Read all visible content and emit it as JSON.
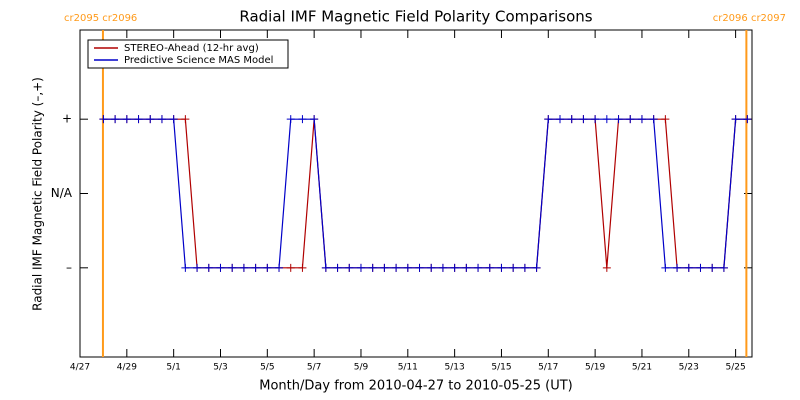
{
  "chart_data": {
    "type": "line",
    "title": "Radial IMF Magnetic Field Polarity Comparisons",
    "x_label": "Month/Day from 2010-04-27 to 2010-05-25 (UT)",
    "y_label": "Radial IMF Magnetic Field Polarity (–,+)",
    "x": [
      1,
      1.5,
      2,
      2.5,
      3,
      3.5,
      4,
      4.5,
      5,
      5.5,
      6,
      6.5,
      7,
      7.5,
      8,
      8.5,
      9,
      9.5,
      10,
      10.5,
      11,
      11.5,
      12,
      12.5,
      13,
      13.5,
      14,
      14.5,
      15,
      15.5,
      16,
      16.5,
      17,
      17.5,
      18,
      18.5,
      19,
      19.5,
      20,
      20.5,
      21,
      21.5,
      22,
      22.5,
      23,
      23.5,
      24,
      24.5,
      25,
      25.5,
      26,
      26.5,
      27,
      27.5,
      28,
      28.5
    ],
    "series": [
      {
        "name": "STEREO-Ahead (12-hr avg)",
        "color": "#b00000",
        "values": [
          1,
          1,
          1,
          1,
          1,
          1,
          1,
          1,
          -1,
          -1,
          -1,
          -1,
          -1,
          -1,
          -1,
          -1,
          -1,
          -1,
          1,
          -1,
          -1,
          -1,
          -1,
          -1,
          -1,
          -1,
          -1,
          -1,
          -1,
          -1,
          -1,
          -1,
          -1,
          -1,
          -1,
          -1,
          -1,
          -1,
          1,
          1,
          1,
          1,
          1,
          -1,
          1,
          1,
          1,
          1,
          1,
          -1,
          -1,
          -1,
          -1,
          -1,
          1,
          1
        ]
      },
      {
        "name": "Predictive Science MAS Model",
        "color": "#0000c8",
        "values": [
          1,
          1,
          1,
          1,
          1,
          1,
          1,
          -1,
          -1,
          -1,
          -1,
          -1,
          -1,
          -1,
          -1,
          -1,
          1,
          1,
          1,
          -1,
          -1,
          -1,
          -1,
          -1,
          -1,
          -1,
          -1,
          -1,
          -1,
          -1,
          -1,
          -1,
          -1,
          -1,
          -1,
          -1,
          -1,
          -1,
          1,
          1,
          1,
          1,
          1,
          1,
          1,
          1,
          1,
          1,
          -1,
          -1,
          -1,
          -1,
          -1,
          -1,
          1,
          1
        ]
      }
    ],
    "xlim": [
      0,
      28.7
    ],
    "xticks": [
      {
        "value": 0,
        "label": "4/27"
      },
      {
        "value": 2,
        "label": "4/29"
      },
      {
        "value": 4,
        "label": "5/1"
      },
      {
        "value": 6,
        "label": "5/3"
      },
      {
        "value": 8,
        "label": "5/5"
      },
      {
        "value": 10,
        "label": "5/7"
      },
      {
        "value": 12,
        "label": "5/9"
      },
      {
        "value": 14,
        "label": "5/11"
      },
      {
        "value": 16,
        "label": "5/13"
      },
      {
        "value": 18,
        "label": "5/15"
      },
      {
        "value": 20,
        "label": "5/17"
      },
      {
        "value": 22,
        "label": "5/19"
      },
      {
        "value": 24,
        "label": "5/21"
      },
      {
        "value": 26,
        "label": "5/23"
      },
      {
        "value": 28,
        "label": "5/25"
      }
    ],
    "ylim": [
      -2.2,
      2.2
    ],
    "yticks": [
      {
        "value": 1,
        "label": "+"
      },
      {
        "value": 0,
        "label": "N/A"
      },
      {
        "value": -1,
        "label": "–"
      }
    ],
    "grid": false,
    "legend": "upper left",
    "annotations": [
      {
        "text": "cr2095 cr2096",
        "x": 0.98,
        "color": "#ff9a1a"
      },
      {
        "text": "cr2096 cr2097",
        "x": 28.46,
        "color": "#ff9a1a"
      }
    ]
  }
}
